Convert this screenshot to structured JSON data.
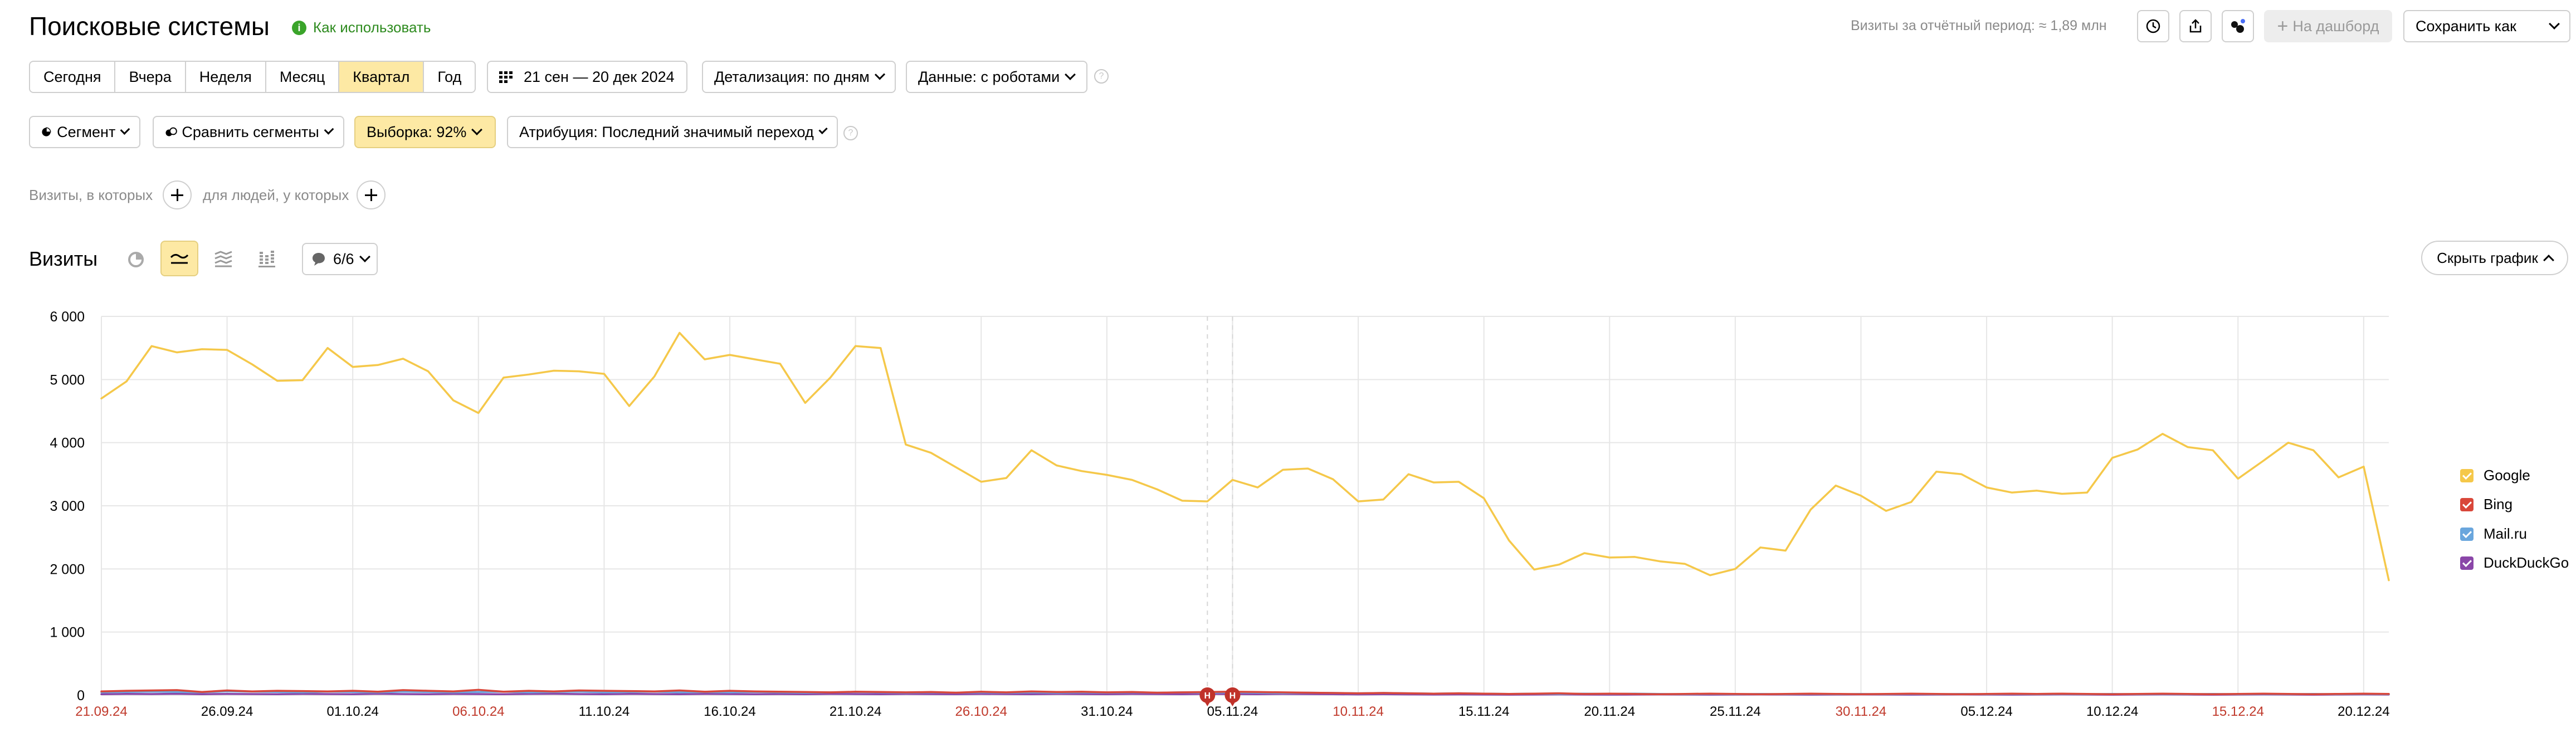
{
  "header": {
    "title": "Поисковые системы",
    "how_to_use": "Как использовать",
    "visits_period": "Визиты за отчётный период: ≈ 1,89 млн",
    "to_dashboard": "На дашборд",
    "save_as": "Сохранить как"
  },
  "period_tabs": [
    "Сегодня",
    "Вчера",
    "Неделя",
    "Месяц",
    "Квартал",
    "Год"
  ],
  "active_period": "Квартал",
  "toolbar": {
    "date_range": "21 сен — 20 дек 2024",
    "detail": "Детализация: по дням",
    "data": "Данные: с роботами"
  },
  "segment_bar": {
    "segment": "Сегмент",
    "compare": "Сравнить сегменты",
    "sample": "Выборка: 92%",
    "attribution": "Атрибуция: Последний значимый переход"
  },
  "filters": {
    "visits_where": "Визиты, в которых",
    "people_where": "для людей, у которых"
  },
  "chart_header": {
    "metric": "Визиты",
    "annotations": "6/6",
    "hide_chart": "Скрыть график"
  },
  "colors": {
    "google": "#f5c84a",
    "bing": "#d9473a",
    "mailru": "#6aa6dd",
    "duckduckgo": "#8a46a8",
    "weekend_label": "#c0392b",
    "accent_yellow": "#fde9a4"
  },
  "chart_data": {
    "type": "line",
    "ylim": [
      0,
      6000
    ],
    "yticks": [
      "0",
      "1 000",
      "2 000",
      "3 000",
      "4 000",
      "5 000",
      "6 000"
    ],
    "x_tick_labels": [
      "21.09.24",
      "26.09.24",
      "01.10.24",
      "06.10.24",
      "11.10.24",
      "16.10.24",
      "21.10.24",
      "26.10.24",
      "31.10.24",
      "05.11.24",
      "10.11.24",
      "15.11.24",
      "20.11.24",
      "25.11.24",
      "30.11.24",
      "05.12.24",
      "10.12.24",
      "15.12.24",
      "20.12.24"
    ],
    "weekend_ticks": [
      "21.09.24",
      "06.10.24",
      "26.10.24",
      "10.11.24",
      "30.11.24",
      "15.12.24"
    ],
    "series": [
      {
        "name": "Google",
        "values": [
          4700,
          4970,
          5530,
          5430,
          5480,
          5470,
          5240,
          4980,
          4990,
          5500,
          5200,
          5230,
          5330,
          5130,
          4670,
          4470,
          5030,
          5080,
          5140,
          5130,
          5090,
          4580,
          5050,
          5740,
          5320,
          5390,
          5320,
          5250,
          4630,
          5030,
          5530,
          5500,
          3970,
          3840,
          3610,
          3380,
          3440,
          3880,
          3640,
          3550,
          3490,
          3410,
          3260,
          3080,
          3070,
          3410,
          3290,
          3570,
          3590,
          3420,
          3070,
          3100,
          3500,
          3370,
          3380,
          3120,
          2450,
          1990,
          2070,
          2250,
          2180,
          2190,
          2120,
          2080,
          1900,
          2000,
          2340,
          2290,
          2940,
          3320,
          3160,
          2920,
          3060,
          3540,
          3500,
          3290,
          3210,
          3240,
          3190,
          3210,
          3760,
          3890,
          4140,
          3930,
          3880,
          3430,
          3710,
          4000,
          3880,
          3450,
          3620,
          1820
        ]
      },
      {
        "name": "Bing",
        "values": [
          60,
          70,
          75,
          80,
          50,
          75,
          60,
          70,
          65,
          60,
          70,
          55,
          80,
          70,
          60,
          85,
          55,
          70,
          60,
          75,
          70,
          65,
          60,
          75,
          55,
          70,
          60,
          55,
          50,
          45,
          55,
          50,
          45,
          50,
          40,
          55,
          45,
          60,
          50,
          55,
          45,
          50,
          40,
          45,
          50,
          55,
          50,
          45,
          40,
          35,
          30,
          35,
          30,
          25,
          30,
          25,
          20,
          25,
          30,
          20,
          25,
          20,
          15,
          20,
          25,
          20,
          15,
          20,
          25,
          20,
          15,
          20,
          25,
          20,
          15,
          20,
          25,
          20,
          25,
          20,
          15,
          20,
          25,
          20,
          15,
          20,
          25,
          20,
          15,
          20,
          25,
          20
        ]
      },
      {
        "name": "Mail.ru",
        "values": [
          45,
          50,
          55,
          50,
          45,
          60,
          55,
          50,
          45,
          55,
          50,
          45,
          55,
          50,
          45,
          50,
          55,
          45,
          50,
          55,
          45,
          50,
          55,
          45,
          50,
          45,
          50,
          45,
          40,
          45,
          50,
          45,
          40,
          45,
          40,
          45,
          40,
          45,
          40,
          45,
          40,
          45,
          40,
          45,
          40,
          45,
          40,
          35,
          40,
          35,
          30,
          35,
          30,
          25,
          30,
          25,
          20,
          25,
          20,
          25,
          20,
          25,
          20,
          15,
          20,
          15,
          20,
          15,
          20,
          15,
          20,
          15,
          20,
          15,
          20,
          15,
          20,
          15,
          20,
          15,
          20,
          15,
          20,
          15,
          20,
          15,
          20,
          15,
          20,
          15,
          20,
          15
        ]
      },
      {
        "name": "DuckDuckGo",
        "values": [
          15,
          20,
          18,
          22,
          15,
          20,
          18,
          15,
          20,
          18,
          15,
          22,
          18,
          15,
          20,
          18,
          15,
          20,
          22,
          18,
          15,
          20,
          18,
          15,
          20,
          18,
          15,
          18,
          15,
          20,
          18,
          15,
          20,
          18,
          15,
          20,
          18,
          15,
          20,
          18,
          15,
          20,
          18,
          15,
          20,
          18,
          15,
          20,
          18,
          15,
          12,
          15,
          12,
          10,
          12,
          10,
          8,
          10,
          12,
          10,
          8,
          10,
          12,
          10,
          8,
          10,
          12,
          10,
          8,
          10,
          12,
          10,
          8,
          10,
          12,
          10,
          8,
          10,
          12,
          10,
          8,
          10,
          12,
          10,
          8,
          10,
          12,
          10,
          8,
          10,
          12,
          10
        ]
      }
    ],
    "annotation_markers": [
      {
        "label": "Н",
        "day_index": 44
      },
      {
        "label": "Н",
        "day_index": 45
      }
    ]
  }
}
